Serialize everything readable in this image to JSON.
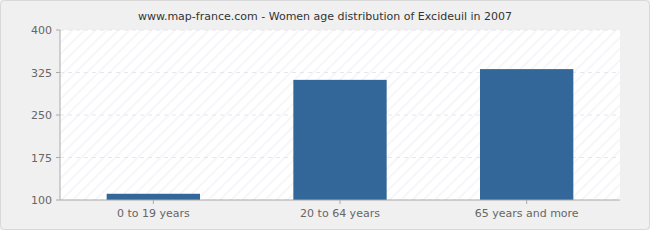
{
  "chart_data": {
    "type": "bar",
    "title": "www.map-france.com - Women age distribution of Excideuil in 2007",
    "categories": [
      "0 to 19 years",
      "20 to 64 years",
      "65 years and more"
    ],
    "values": [
      111,
      312,
      331
    ],
    "color": "#336699",
    "ylim": [
      100,
      400
    ],
    "yticks": [
      100,
      175,
      250,
      325,
      400
    ],
    "grid": true
  }
}
